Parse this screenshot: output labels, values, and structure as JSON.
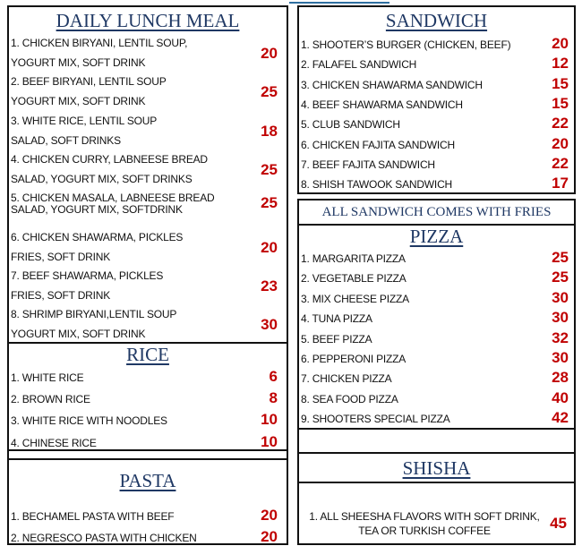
{
  "colors": {
    "heading": "#1f3864",
    "price": "#c00000"
  },
  "lunch": {
    "title": "DAILY LUNCH MEAL",
    "items": [
      {
        "line1": "1. CHICKEN BIRYANI, LENTIL SOUP,",
        "line2": "YOGURT MIX, SOFT DRINK",
        "price": "20"
      },
      {
        "line1": "2. BEEF BIRYANI, LENTIL SOUP",
        "line2": "YOGURT MIX, SOFT DRINK",
        "price": "25"
      },
      {
        "line1": "3. WHITE RICE, LENTIL SOUP",
        "line2": "SALAD, SOFT DRINKS",
        "price": "18"
      },
      {
        "line1": "4. CHICKEN CURRY, LABNEESE BREAD",
        "line2": "SALAD, YOGURT MIX, SOFT DRINKS",
        "price": "25"
      },
      {
        "line1": "5. CHICKEN MASALA, LABNEESE BREAD",
        "line2": "SALAD, YOGURT MIX, SOFTDRINK",
        "price": "25"
      },
      {
        "line1": "6. CHICKEN SHAWARMA, PICKLES",
        "line2": "FRIES, SOFT DRINK",
        "price": "20"
      },
      {
        "line1": "7. BEEF SHAWARMA, PICKLES",
        "line2": "FRIES, SOFT DRINK",
        "price": "23"
      },
      {
        "line1": "8. SHRIMP BIRYANI,LENTIL SOUP",
        "line2": "YOGURT MIX, SOFT DRINK",
        "price": "30"
      }
    ]
  },
  "rice": {
    "title": "RICE",
    "items": [
      {
        "name": "1. WHITE RICE",
        "price": "6"
      },
      {
        "name": "2. BROWN RICE",
        "price": "8"
      },
      {
        "name": "3. WHITE RICE WITH NOODLES",
        "price": "10"
      },
      {
        "name": "4. CHINESE RICE",
        "price": "10"
      }
    ]
  },
  "pasta": {
    "title": "PASTA",
    "items": [
      {
        "name": "1. BECHAMEL PASTA WITH BEEF",
        "price": "20"
      },
      {
        "name": "2. NEGRESCO PASTA WITH CHICKEN",
        "price": "20"
      }
    ]
  },
  "sandwich": {
    "title": "SANDWICH",
    "note": "ALL SANDWICH COMES WITH FRIES",
    "items": [
      {
        "name": "1. SHOOTER’S BURGER (CHICKEN, BEEF)",
        "price": "20"
      },
      {
        "name": "2. FALAFEL SANDWICH",
        "price": "12"
      },
      {
        "name": "3. CHICKEN SHAWARMA SANDWICH",
        "price": "15"
      },
      {
        "name": "4. BEEF SHAWARMA SANDWICH",
        "price": "15"
      },
      {
        "name": "5. CLUB SANDWICH",
        "price": "22"
      },
      {
        "name": "6. CHICKEN FAJITA SANDWICH",
        "price": "20"
      },
      {
        "name": "7. BEEF FAJITA SANDWICH",
        "price": "22"
      },
      {
        "name": "8. SHISH TAWOOK SANDWICH",
        "price": "17"
      }
    ]
  },
  "pizza": {
    "title": "PIZZA",
    "items": [
      {
        "name": "1. MARGARITA PIZZA",
        "price": "25"
      },
      {
        "name": "2. VEGETABLE PIZZA",
        "price": "25"
      },
      {
        "name": "3. MIX CHEESE PIZZA",
        "price": "30"
      },
      {
        "name": "4. TUNA PIZZA",
        "price": "30"
      },
      {
        "name": "5. BEEF PIZZA",
        "price": "32"
      },
      {
        "name": "6. PEPPERONI PIZZA",
        "price": "30"
      },
      {
        "name": "7. CHICKEN PIZZA",
        "price": "28"
      },
      {
        "name": "8. SEA FOOD PIZZA",
        "price": "40"
      },
      {
        "name": "9. SHOOTERS SPECIAL PIZZA",
        "price": "42"
      }
    ]
  },
  "shisha": {
    "title": "SHISHA",
    "item": {
      "line1": "1. ALL SHEESHA FLAVORS WITH SOFT DRINK,",
      "line2": "TEA OR TURKISH COFFEE",
      "price": "45"
    }
  }
}
